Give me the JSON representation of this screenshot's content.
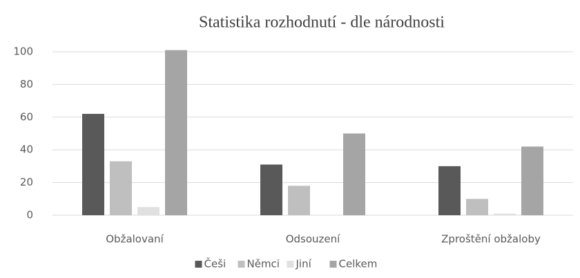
{
  "chart_data": {
    "type": "bar",
    "title": "Statistika rozhodnutí - dle národnosti",
    "categories": [
      "Obžalovaní",
      "Odsouzení",
      "Zproštění obžaloby"
    ],
    "series": [
      {
        "name": "Češi",
        "color": "#595959",
        "values": [
          62,
          31,
          30
        ]
      },
      {
        "name": "Němci",
        "color": "#bfbfbf",
        "values": [
          33,
          18,
          10
        ]
      },
      {
        "name": "Jiní",
        "color": "#e0e0e0",
        "values": [
          5,
          0,
          1
        ]
      },
      {
        "name": "Celkem",
        "color": "#a5a5a5",
        "values": [
          101,
          50,
          42
        ]
      }
    ],
    "ylim": [
      0,
      100
    ],
    "yticks": [
      0,
      20,
      40,
      60,
      80,
      100
    ],
    "grid": true,
    "legend": "bottom"
  }
}
